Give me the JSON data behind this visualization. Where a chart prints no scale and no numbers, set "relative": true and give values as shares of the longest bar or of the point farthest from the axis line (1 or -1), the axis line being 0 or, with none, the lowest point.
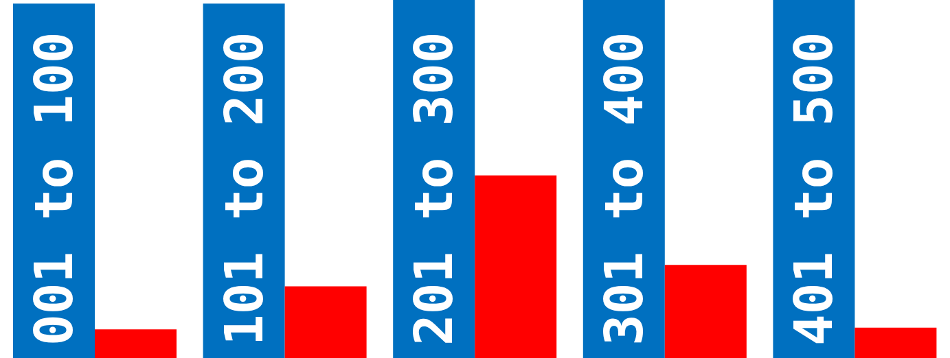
{
  "chart_data": {
    "type": "bar",
    "relative": true,
    "categories": [
      "001 to 100",
      "101 to 200",
      "201 to 300",
      "301 to 400",
      "401 to 500"
    ],
    "series": [
      {
        "color": "#0070c0",
        "values": [
          0.99,
          0.99,
          1,
          1,
          1
        ]
      },
      {
        "color": "#ff0000",
        "values": [
          0.08,
          0.2,
          0.51,
          0.26,
          0.085
        ]
      }
    ]
  }
}
